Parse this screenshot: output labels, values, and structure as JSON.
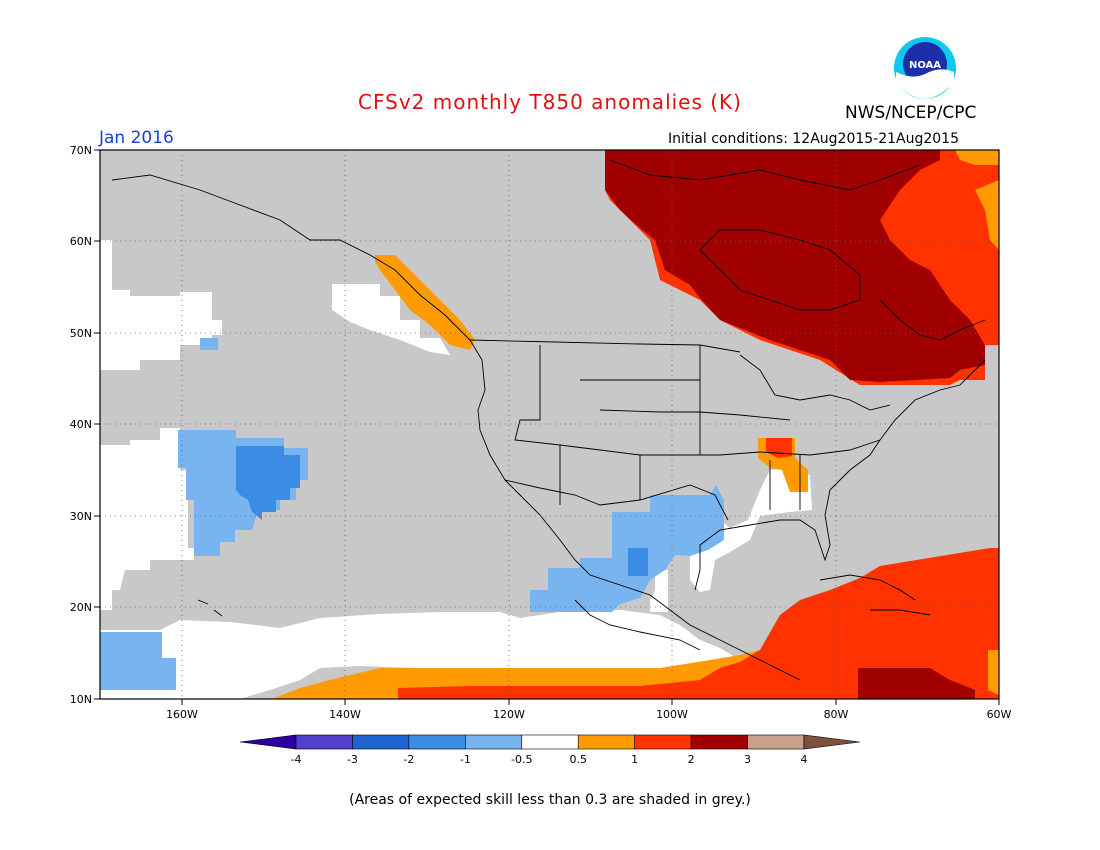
{
  "header": {
    "title": "CFSv2 monthly T850 anomalies (K)",
    "agency": "NWS/NCEP/CPC",
    "logo_text": "NOAA",
    "month": "Jan 2016",
    "initial_conditions": "Initial conditions: 12Aug2015-21Aug2015"
  },
  "map": {
    "region": "North America / NE Pacific",
    "lon_range": [
      -170,
      -60
    ],
    "lat_range": [
      10,
      70
    ],
    "x_ticks": [
      "160W",
      "140W",
      "120W",
      "100W",
      "80W",
      "60W"
    ],
    "y_ticks": [
      "10N",
      "20N",
      "30N",
      "40N",
      "50N",
      "60N",
      "70N"
    ],
    "colors": {
      "grey": "#c8c8c8",
      "white": "#ffffff",
      "light_blue": "#78b4f0",
      "mid_blue": "#3c8ce6",
      "orange": "#ff9b00",
      "red": "#ff3200",
      "dark_red": "#a00000"
    }
  },
  "colorbar": {
    "labels": [
      "-4",
      "-3",
      "-2",
      "-1",
      "-0.5",
      "0.5",
      "1",
      "2",
      "3",
      "4"
    ],
    "colors": [
      "#2a009e",
      "#5040d0",
      "#1e64d2",
      "#3c8ce6",
      "#78b4f0",
      "#ffffff",
      "#ff9b00",
      "#ff3200",
      "#a00000",
      "#c8a08c",
      "#7d5040"
    ]
  },
  "footer": {
    "note": "(Areas of expected skill less than 0.3 are shaded in grey.)"
  }
}
